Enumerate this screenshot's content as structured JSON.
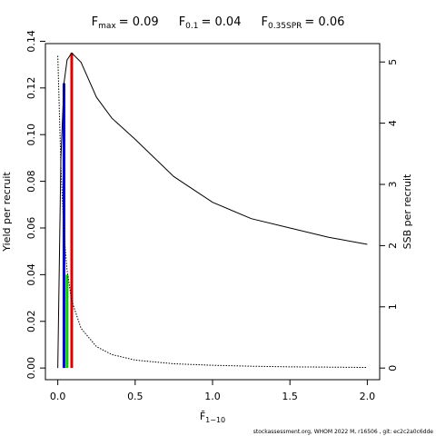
{
  "chart_data": {
    "type": "line",
    "markers": [
      {
        "symbol": "F",
        "subscript": "max",
        "equation": "= 0.09",
        "value": 0.09,
        "height": 0.135,
        "color": "#e00000"
      },
      {
        "symbol": "F",
        "subscript": "0.1",
        "equation": "= 0.04",
        "value": 0.04,
        "height": 0.122,
        "color": "#0000e0"
      },
      {
        "symbol": "F",
        "subscript": "0.35SPR",
        "equation": "= 0.06",
        "value": 0.06,
        "height": 0.04,
        "color": "#00d000"
      }
    ],
    "xlabel": "F̄",
    "xlabel_sub": "1−10",
    "ylabel": "Yield per recruit",
    "y2label": "SSB per recruit",
    "x": [
      0,
      0.02,
      0.04,
      0.06,
      0.09,
      0.15,
      0.25,
      0.35,
      0.5,
      0.75,
      1.0,
      1.25,
      1.5,
      1.75,
      2.0
    ],
    "series": [
      {
        "name": "Yield per recruit",
        "color": "#000000",
        "dash": false,
        "values": [
          0,
          0.09,
          0.122,
          0.132,
          0.135,
          0.131,
          0.116,
          0.107,
          0.098,
          0.082,
          0.071,
          0.064,
          0.06,
          0.056,
          0.053
        ]
      },
      {
        "name": "SSB per recruit",
        "color": "#000000",
        "dash": true,
        "axis": "y2",
        "values": [
          5.1,
          3.3,
          2.2,
          1.6,
          1.1,
          0.65,
          0.35,
          0.22,
          0.13,
          0.07,
          0.045,
          0.03,
          0.02,
          0.015,
          0.01
        ]
      }
    ],
    "xlim": [
      -0.08,
      2.08
    ],
    "xticks": [
      {
        "value": 0,
        "label": "0.0"
      },
      {
        "value": 0.5,
        "label": "0.5"
      },
      {
        "value": 1,
        "label": "1.0"
      },
      {
        "value": 1.5,
        "label": "1.5"
      },
      {
        "value": 2,
        "label": "2.0"
      }
    ],
    "ylim": [
      -0.005,
      0.139
    ],
    "yticks": [
      {
        "value": 0,
        "label": "0.00"
      },
      {
        "value": 0.02,
        "label": "0.02"
      },
      {
        "value": 0.04,
        "label": "0.04"
      },
      {
        "value": 0.06,
        "label": "0.06"
      },
      {
        "value": 0.08,
        "label": "0.08"
      },
      {
        "value": 0.1,
        "label": "0.10"
      },
      {
        "value": 0.12,
        "label": "0.12"
      },
      {
        "value": 0.14,
        "label": "0.14"
      }
    ],
    "y2lim": [
      -0.19,
      5.3
    ],
    "y2ticks": [
      0,
      1,
      2,
      3,
      4,
      5
    ],
    "footer": "stockassessment.org, WHOM 2022 M, r16506 , git: ec2c2a0c6dde"
  }
}
